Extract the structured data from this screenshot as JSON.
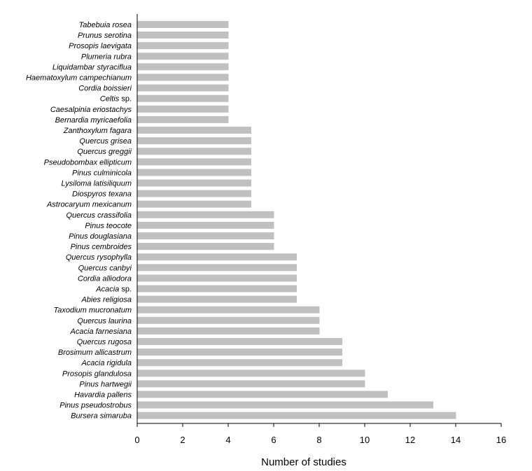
{
  "chart_data": {
    "type": "bar",
    "orientation": "horizontal",
    "categories": [
      "Tabebuia rosea",
      "Prunus serotina",
      "Prosopis laevigata",
      "Plumeria rubra",
      "Liquidambar styraciflua",
      "Haematoxylum campechianum",
      "Cordia boissieri",
      "Celtis sp.",
      "Caesalpinia eriostachys",
      "Bernardia myricaefolia",
      "Zanthoxylum fagara",
      "Quercus grisea",
      "Quercus greggii",
      "Pseudobombax ellipticum",
      "Pinus culminicola",
      "Lysiloma latisiliquum",
      "Diospyros texana",
      "Astrocaryum mexicanum",
      "Quercus crassifolia",
      "Pinus teocote",
      "Pinus douglasiana",
      "Pinus cembroides",
      "Quercus rysophylla",
      "Quercus canbyi",
      "Cordia alliodora",
      "Acacia sp.",
      "Abies religiosa",
      "Taxodium mucronatum",
      "Quercus laurina",
      "Acacia farnesiana",
      "Quercus rugosa",
      "Brosimum allicastrum",
      "Acacia rigidula",
      "Prosopis glandulosa",
      "Pinus hartwegii",
      "Havardia pallens",
      "Pinus pseudostrobus",
      "Bursera simaruba"
    ],
    "values": [
      4,
      4,
      4,
      4,
      4,
      4,
      4,
      4,
      4,
      4,
      5,
      5,
      5,
      5,
      5,
      5,
      5,
      5,
      6,
      6,
      6,
      6,
      7,
      7,
      7,
      7,
      7,
      8,
      8,
      8,
      9,
      9,
      9,
      10,
      10,
      11,
      13,
      14
    ],
    "xlabel": "Number of studies",
    "ylabel": "",
    "xlim": [
      0,
      16
    ],
    "xticks": [
      "0",
      "2",
      "4",
      "6",
      "8",
      "10",
      "12",
      "14",
      "16"
    ],
    "bar_color": "#c0c0c0",
    "grid": false
  }
}
